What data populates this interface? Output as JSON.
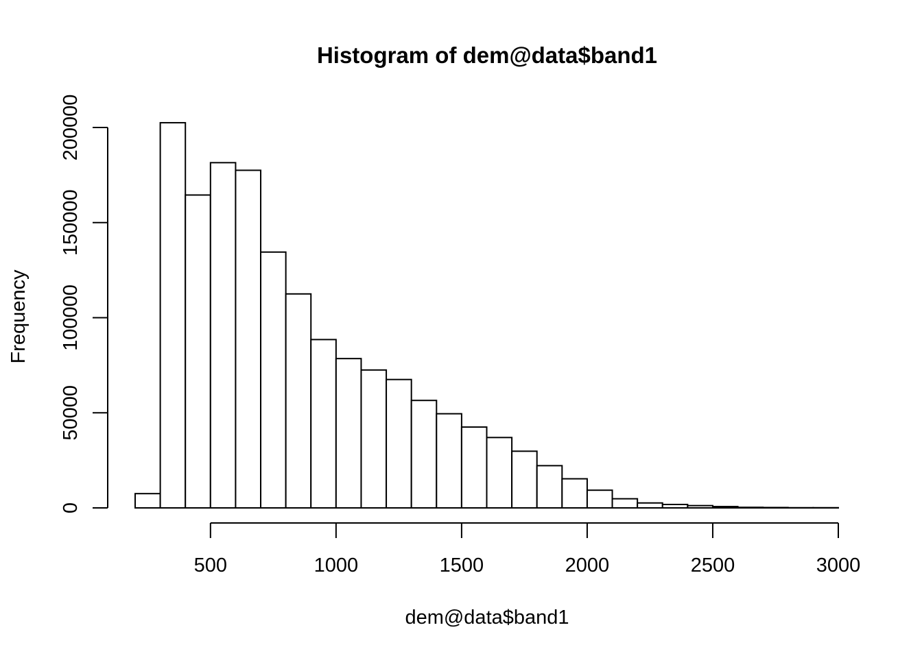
{
  "chart_data": {
    "type": "bar",
    "title": "Histogram of dem@data$band1",
    "xlabel": "dem@data$band1",
    "ylabel": "Frequency",
    "xlim": [
      200,
      3000
    ],
    "ylim": [
      0,
      200000
    ],
    "x_ticks": [
      500,
      1000,
      1500,
      2000,
      2500,
      3000
    ],
    "x_tick_labels": [
      "500",
      "1000",
      "1500",
      "2000",
      "2500",
      "3000"
    ],
    "y_ticks": [
      0,
      50000,
      100000,
      150000,
      200000
    ],
    "y_tick_labels": [
      "0",
      "50000",
      "100000",
      "150000",
      "200000"
    ],
    "bin_width": 100,
    "bin_starts": [
      200,
      300,
      400,
      500,
      600,
      700,
      800,
      900,
      1000,
      1100,
      1200,
      1300,
      1400,
      1500,
      1600,
      1700,
      1800,
      1900,
      2000,
      2100,
      2200,
      2300,
      2400,
      2500,
      2600,
      2700,
      2800,
      2900
    ],
    "values": [
      7500,
      202500,
      164500,
      181500,
      177500,
      134500,
      112500,
      88500,
      78500,
      72500,
      67500,
      56500,
      49500,
      42500,
      37000,
      29800,
      22200,
      15300,
      9300,
      4800,
      2600,
      1800,
      1200,
      700,
      300,
      200,
      100,
      100
    ],
    "bar_fill": "#ffffff",
    "bar_stroke": "#000000",
    "grid": false,
    "legend": "none"
  }
}
